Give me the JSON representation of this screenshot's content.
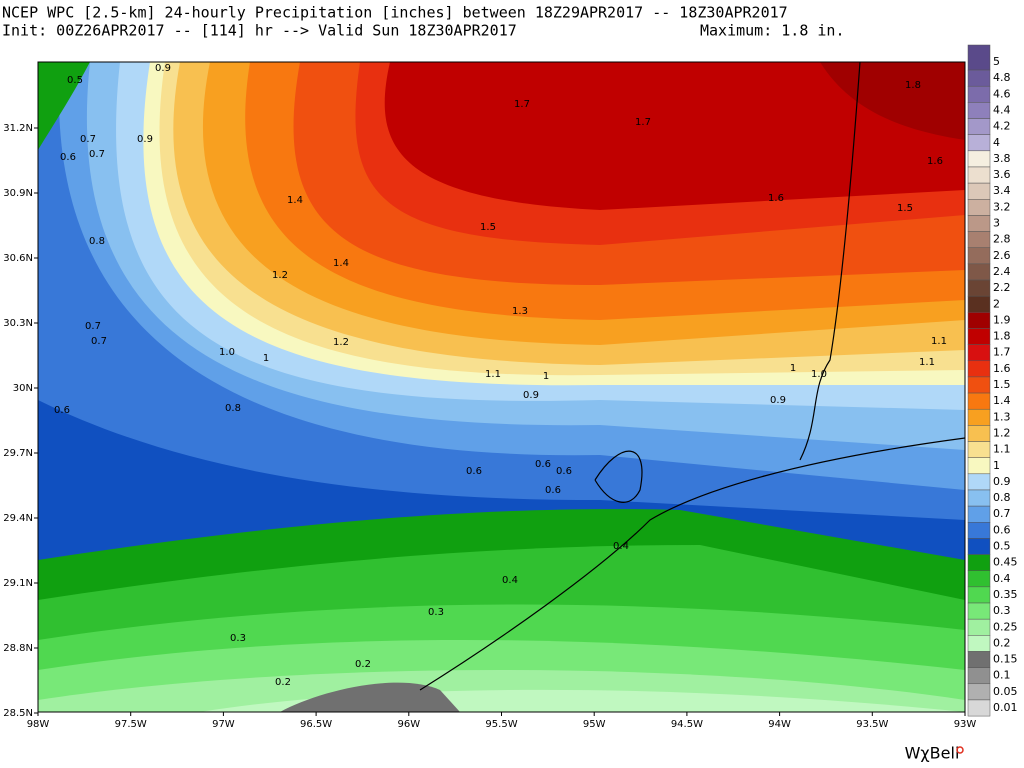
{
  "header": {
    "line1": "NCEP WPC [2.5-km] 24-hourly Precipitation [inches] between 18Z29APR2017 -- 18Z30APR2017",
    "line2_left": "Init: 00Z26APR2017 -- [114] hr --> Valid Sun 18Z30APR2017",
    "line2_right": "Maximum: 1.8 in."
  },
  "lat_labels": [
    "31.2N",
    "30.9N",
    "30.6N",
    "30.3N",
    "30N",
    "29.7N",
    "29.4N",
    "29.1N",
    "28.8N",
    "28.5N"
  ],
  "lon_labels": [
    "98W",
    "97.5W",
    "97W",
    "96.5W",
    "96W",
    "95.5W",
    "95W",
    "94.5W",
    "94W",
    "93.5W",
    "93W"
  ],
  "colorbar": [
    {
      "label": "5",
      "color": "#5a4a8a"
    },
    {
      "label": "4.8",
      "color": "#6b5b9b"
    },
    {
      "label": "4.6",
      "color": "#7c6cab"
    },
    {
      "label": "4.4",
      "color": "#8e80bb"
    },
    {
      "label": "4.2",
      "color": "#a398c9"
    },
    {
      "label": "4",
      "color": "#b8b0d8"
    },
    {
      "label": "3.8",
      "color": "#f5efe0"
    },
    {
      "label": "3.6",
      "color": "#ecdfcf"
    },
    {
      "label": "3.4",
      "color": "#dcc8b8"
    },
    {
      "label": "3.2",
      "color": "#ccb0a0"
    },
    {
      "label": "3",
      "color": "#bb9888"
    },
    {
      "label": "2.8",
      "color": "#a88070"
    },
    {
      "label": "2.6",
      "color": "#946c5c"
    },
    {
      "label": "2.4",
      "color": "#7f5848"
    },
    {
      "label": "2.2",
      "color": "#6a4434"
    },
    {
      "label": "2",
      "color": "#5a3020"
    },
    {
      "label": "1.9",
      "color": "#a00000"
    },
    {
      "label": "1.8",
      "color": "#c00000"
    },
    {
      "label": "1.7",
      "color": "#d81010"
    },
    {
      "label": "1.6",
      "color": "#e83010"
    },
    {
      "label": "1.5",
      "color": "#f05010"
    },
    {
      "label": "1.4",
      "color": "#f87810"
    },
    {
      "label": "1.3",
      "color": "#f8a020"
    },
    {
      "label": "1.2",
      "color": "#f8c050"
    },
    {
      "label": "1.1",
      "color": "#f8e090"
    },
    {
      "label": "1",
      "color": "#f8f8c0"
    },
    {
      "label": "0.9",
      "color": "#b0d8f8"
    },
    {
      "label": "0.8",
      "color": "#88c0f0"
    },
    {
      "label": "0.7",
      "color": "#60a0e8"
    },
    {
      "label": "0.6",
      "color": "#3878d8"
    },
    {
      "label": "0.5",
      "color": "#1050c0"
    },
    {
      "label": "0.45",
      "color": "#10a010"
    },
    {
      "label": "0.4",
      "color": "#30c030"
    },
    {
      "label": "0.35",
      "color": "#50d850"
    },
    {
      "label": "0.3",
      "color": "#78e878"
    },
    {
      "label": "0.25",
      "color": "#a0f0a0"
    },
    {
      "label": "0.2",
      "color": "#c0f8c0"
    },
    {
      "label": "0.15",
      "color": "#707070"
    },
    {
      "label": "0.1",
      "color": "#909090"
    },
    {
      "label": "0.05",
      "color": "#b0b0b0"
    },
    {
      "label": "0.01",
      "color": "#d8d8d8"
    }
  ],
  "contour_labels": [
    "0.5",
    "0.9",
    "0.7",
    "0.9",
    "0.6",
    "0.7",
    "1.7",
    "1.7",
    "1.8",
    "1.6",
    "1.4",
    "1.5",
    "1.6",
    "1.5",
    "0.8",
    "1.4",
    "1.2",
    "1.3",
    "0.7",
    "0.7",
    "1.2",
    "1.0",
    "1",
    "1.1",
    "1.1",
    "1.1",
    "1",
    "1",
    "1.0",
    "0.9",
    "0.9",
    "0.6",
    "0.8",
    "0.6",
    "0.6",
    "0.6",
    "0.6",
    "0.4",
    "0.4",
    "0.3",
    "0.3",
    "0.2",
    "0.2"
  ],
  "logo": "WχBell"
}
